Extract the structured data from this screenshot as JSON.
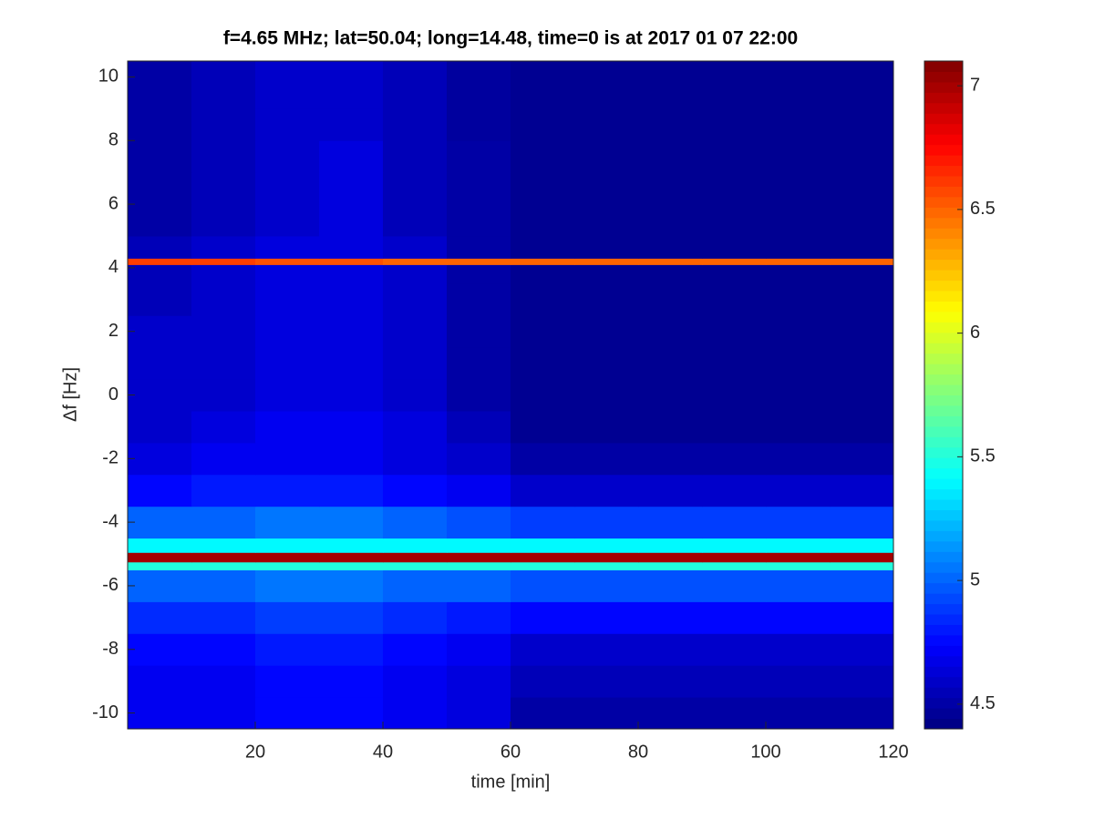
{
  "chart_data": {
    "type": "heatmap",
    "title": "f=4.65 MHz;  lat=50.04; long=14.48, time=0 is at 2017 01 07 22:00",
    "xlabel": "time [min]",
    "ylabel": "Δf [Hz]",
    "colormap": "jet",
    "xlim": [
      0,
      120
    ],
    "xticks": [
      20,
      40,
      60,
      80,
      100,
      120
    ],
    "ylim": [
      -10.5,
      10.5
    ],
    "yticks": [
      -10,
      -8,
      -6,
      -4,
      -2,
      0,
      2,
      4,
      6,
      8,
      10
    ],
    "clim": [
      4.4,
      7.1
    ],
    "cticks": [
      4.5,
      5,
      5.5,
      6,
      6.5,
      7
    ],
    "x_edges": [
      0,
      10,
      20,
      30,
      40,
      50,
      60,
      70,
      80,
      90,
      100,
      110,
      120
    ],
    "y_edges": [
      -10.5,
      -9.5,
      -8.5,
      -7.5,
      -6.5,
      -5.5,
      -5.25,
      -4.95,
      -4.5,
      -3.5,
      -2.5,
      -1.5,
      -0.5,
      0.5,
      1.5,
      2.5,
      3.5,
      4.1,
      4.3,
      5,
      6,
      7,
      8,
      9,
      10.5
    ],
    "z": [
      [
        4.7,
        4.7,
        4.75,
        4.75,
        4.7,
        4.65,
        4.5,
        4.5,
        4.5,
        4.5,
        4.5,
        4.5
      ],
      [
        4.7,
        4.7,
        4.75,
        4.75,
        4.7,
        4.65,
        4.55,
        4.55,
        4.55,
        4.55,
        4.55,
        4.55
      ],
      [
        4.75,
        4.75,
        4.8,
        4.8,
        4.75,
        4.7,
        4.6,
        4.6,
        4.6,
        4.6,
        4.6,
        4.6
      ],
      [
        4.85,
        4.85,
        4.9,
        4.9,
        4.85,
        4.8,
        4.75,
        4.75,
        4.75,
        4.75,
        4.75,
        4.75
      ],
      [
        5.0,
        5.0,
        5.05,
        5.05,
        5.0,
        5.0,
        4.95,
        4.95,
        4.95,
        4.95,
        4.95,
        4.95
      ],
      [
        5.5,
        5.5,
        5.5,
        5.5,
        5.5,
        5.5,
        5.5,
        5.5,
        5.5,
        5.5,
        5.5,
        5.5
      ],
      [
        7.0,
        7.0,
        7.0,
        7.0,
        7.0,
        7.0,
        7.0,
        7.0,
        7.0,
        7.0,
        7.0,
        7.0
      ],
      [
        5.4,
        5.4,
        5.4,
        5.4,
        5.4,
        5.4,
        5.4,
        5.4,
        5.4,
        5.4,
        5.4,
        5.4
      ],
      [
        5.0,
        5.0,
        5.05,
        5.05,
        5.0,
        4.95,
        4.9,
        4.9,
        4.9,
        4.9,
        4.9,
        4.9
      ],
      [
        4.75,
        4.8,
        4.8,
        4.8,
        4.75,
        4.7,
        4.6,
        4.6,
        4.6,
        4.6,
        4.6,
        4.6
      ],
      [
        4.65,
        4.7,
        4.7,
        4.7,
        4.65,
        4.6,
        4.5,
        4.5,
        4.5,
        4.5,
        4.5,
        4.5
      ],
      [
        4.6,
        4.65,
        4.7,
        4.7,
        4.65,
        4.55,
        4.45,
        4.45,
        4.45,
        4.45,
        4.45,
        4.45
      ],
      [
        4.6,
        4.6,
        4.65,
        4.65,
        4.6,
        4.5,
        4.45,
        4.45,
        4.45,
        4.45,
        4.45,
        4.45
      ],
      [
        4.6,
        4.6,
        4.65,
        4.65,
        4.6,
        4.5,
        4.45,
        4.45,
        4.45,
        4.45,
        4.45,
        4.45
      ],
      [
        4.6,
        4.6,
        4.65,
        4.65,
        4.6,
        4.5,
        4.45,
        4.45,
        4.45,
        4.45,
        4.45,
        4.45
      ],
      [
        4.55,
        4.6,
        4.65,
        4.65,
        4.6,
        4.5,
        4.45,
        4.45,
        4.45,
        4.45,
        4.45,
        4.45
      ],
      [
        4.55,
        4.6,
        4.65,
        4.65,
        4.6,
        4.5,
        4.45,
        4.45,
        4.45,
        4.45,
        4.45,
        4.45
      ],
      [
        6.6,
        6.6,
        6.55,
        6.55,
        6.5,
        6.5,
        6.5,
        6.5,
        6.5,
        6.5,
        6.5,
        6.5
      ],
      [
        4.55,
        4.6,
        4.65,
        4.65,
        4.6,
        4.5,
        4.45,
        4.45,
        4.45,
        4.45,
        4.45,
        4.45
      ],
      [
        4.5,
        4.55,
        4.6,
        4.65,
        4.55,
        4.5,
        4.45,
        4.45,
        4.45,
        4.45,
        4.45,
        4.45
      ],
      [
        4.5,
        4.55,
        4.6,
        4.65,
        4.55,
        4.5,
        4.45,
        4.45,
        4.45,
        4.45,
        4.45,
        4.45
      ],
      [
        4.5,
        4.55,
        4.6,
        4.65,
        4.55,
        4.5,
        4.45,
        4.45,
        4.45,
        4.45,
        4.45,
        4.45
      ],
      [
        4.5,
        4.55,
        4.6,
        4.6,
        4.55,
        4.48,
        4.45,
        4.45,
        4.45,
        4.45,
        4.45,
        4.45
      ],
      [
        4.5,
        4.55,
        4.6,
        4.6,
        4.55,
        4.48,
        4.45,
        4.45,
        4.45,
        4.45,
        4.45,
        4.45
      ]
    ]
  }
}
